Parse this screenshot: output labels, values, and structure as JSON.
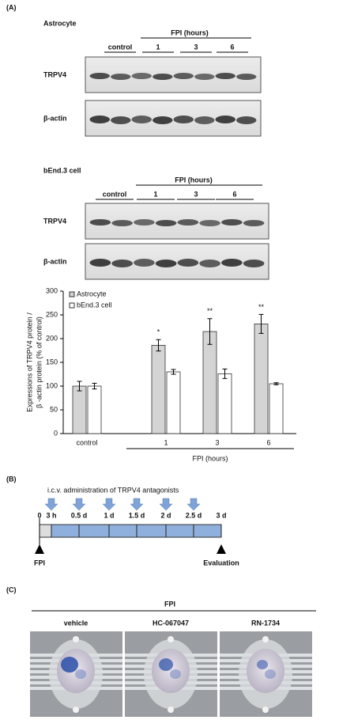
{
  "panel_a": {
    "label": "(A)",
    "astrocyte_blot": {
      "title": "Astrocyte",
      "group": "FPI (hours)",
      "lanes": [
        "control",
        "1",
        "3",
        "6"
      ],
      "rows": [
        "TRPV4",
        "β-actin"
      ]
    },
    "bend_blot": {
      "title": "bEnd.3 cell",
      "group": "FPI (hours)",
      "lanes": [
        "control",
        "1",
        "3",
        "6"
      ],
      "rows": [
        "TRPV4",
        "β-actin"
      ]
    }
  },
  "chart_data": {
    "type": "bar",
    "categories": [
      "control",
      "1",
      "3",
      "6"
    ],
    "x_group_label": "FPI (hours)",
    "y_label": [
      "Expressions of  TRPV4 protein /",
      "β -actin protein  (% of control)"
    ],
    "series": [
      {
        "name": "Astrocyte",
        "color": "#d4d4d4",
        "values": [
          100,
          186,
          215,
          231
        ],
        "errors": [
          10,
          12,
          27,
          20
        ]
      },
      {
        "name": "bEnd.3 cell",
        "color": "#ffffff",
        "values": [
          100,
          130,
          126,
          105
        ],
        "errors": [
          6,
          5,
          10,
          2
        ]
      }
    ],
    "annotations": [
      {
        "text": "*",
        "category": "1"
      },
      {
        "text": "**",
        "category": "3"
      },
      {
        "text": "**",
        "category": "6"
      }
    ],
    "ylim": [
      0,
      300
    ],
    "yticks": [
      0,
      50,
      100,
      150,
      200,
      250,
      300
    ],
    "legend": "top-left"
  },
  "panel_b": {
    "label": "(B)",
    "title": "i.c.v. administration of TRPV4 antagonists",
    "timepoints": [
      "0",
      "3 h",
      "0.5 d",
      "1 d",
      "1.5 d",
      "2 d",
      "2.5 d",
      "3 d"
    ],
    "start": "FPI",
    "end": "Evaluation"
  },
  "panel_c": {
    "label": "(C)",
    "group": "FPI",
    "conditions": [
      "vehicle",
      "HC-067047",
      "RN-1734"
    ]
  }
}
